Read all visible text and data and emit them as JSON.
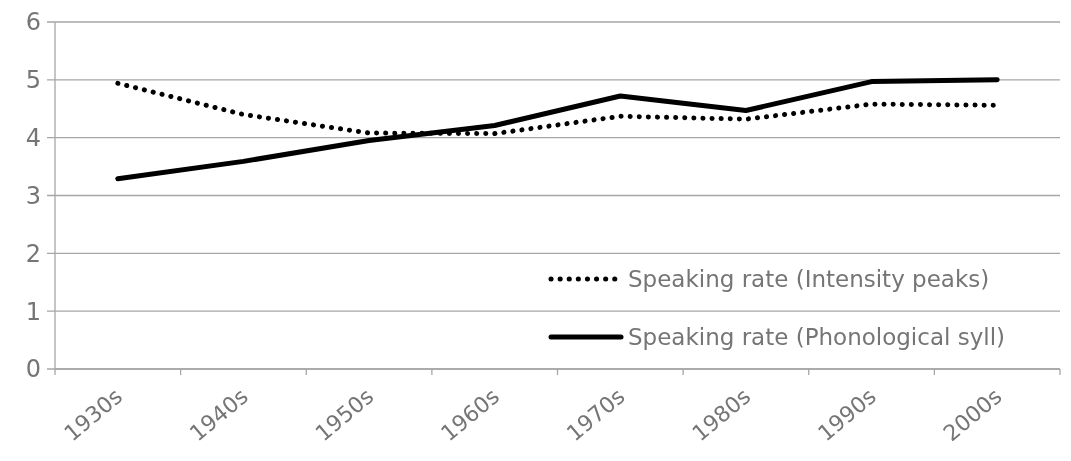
{
  "chart_data": {
    "type": "line",
    "categories": [
      "1930s",
      "1940s",
      "1950s",
      "1960s",
      "1970s",
      "1980s",
      "1990s",
      "2000s"
    ],
    "series": [
      {
        "name": "Speaking rate (Intensity peaks)",
        "color": "#000000",
        "line_style": "dotted",
        "values": [
          4.94,
          4.4,
          4.08,
          4.07,
          4.37,
          4.32,
          4.58,
          4.56
        ]
      },
      {
        "name": "Speaking rate (Phonological syll)",
        "color": "#000000",
        "line_style": "solid",
        "values": [
          3.29,
          3.59,
          3.95,
          4.21,
          4.72,
          4.47,
          4.97,
          5.0
        ]
      }
    ],
    "ylim": [
      0,
      6
    ],
    "yticks": [
      0,
      1,
      2,
      3,
      4,
      5,
      6
    ],
    "grid": "y",
    "legend": "bottom right",
    "marker": "none"
  }
}
